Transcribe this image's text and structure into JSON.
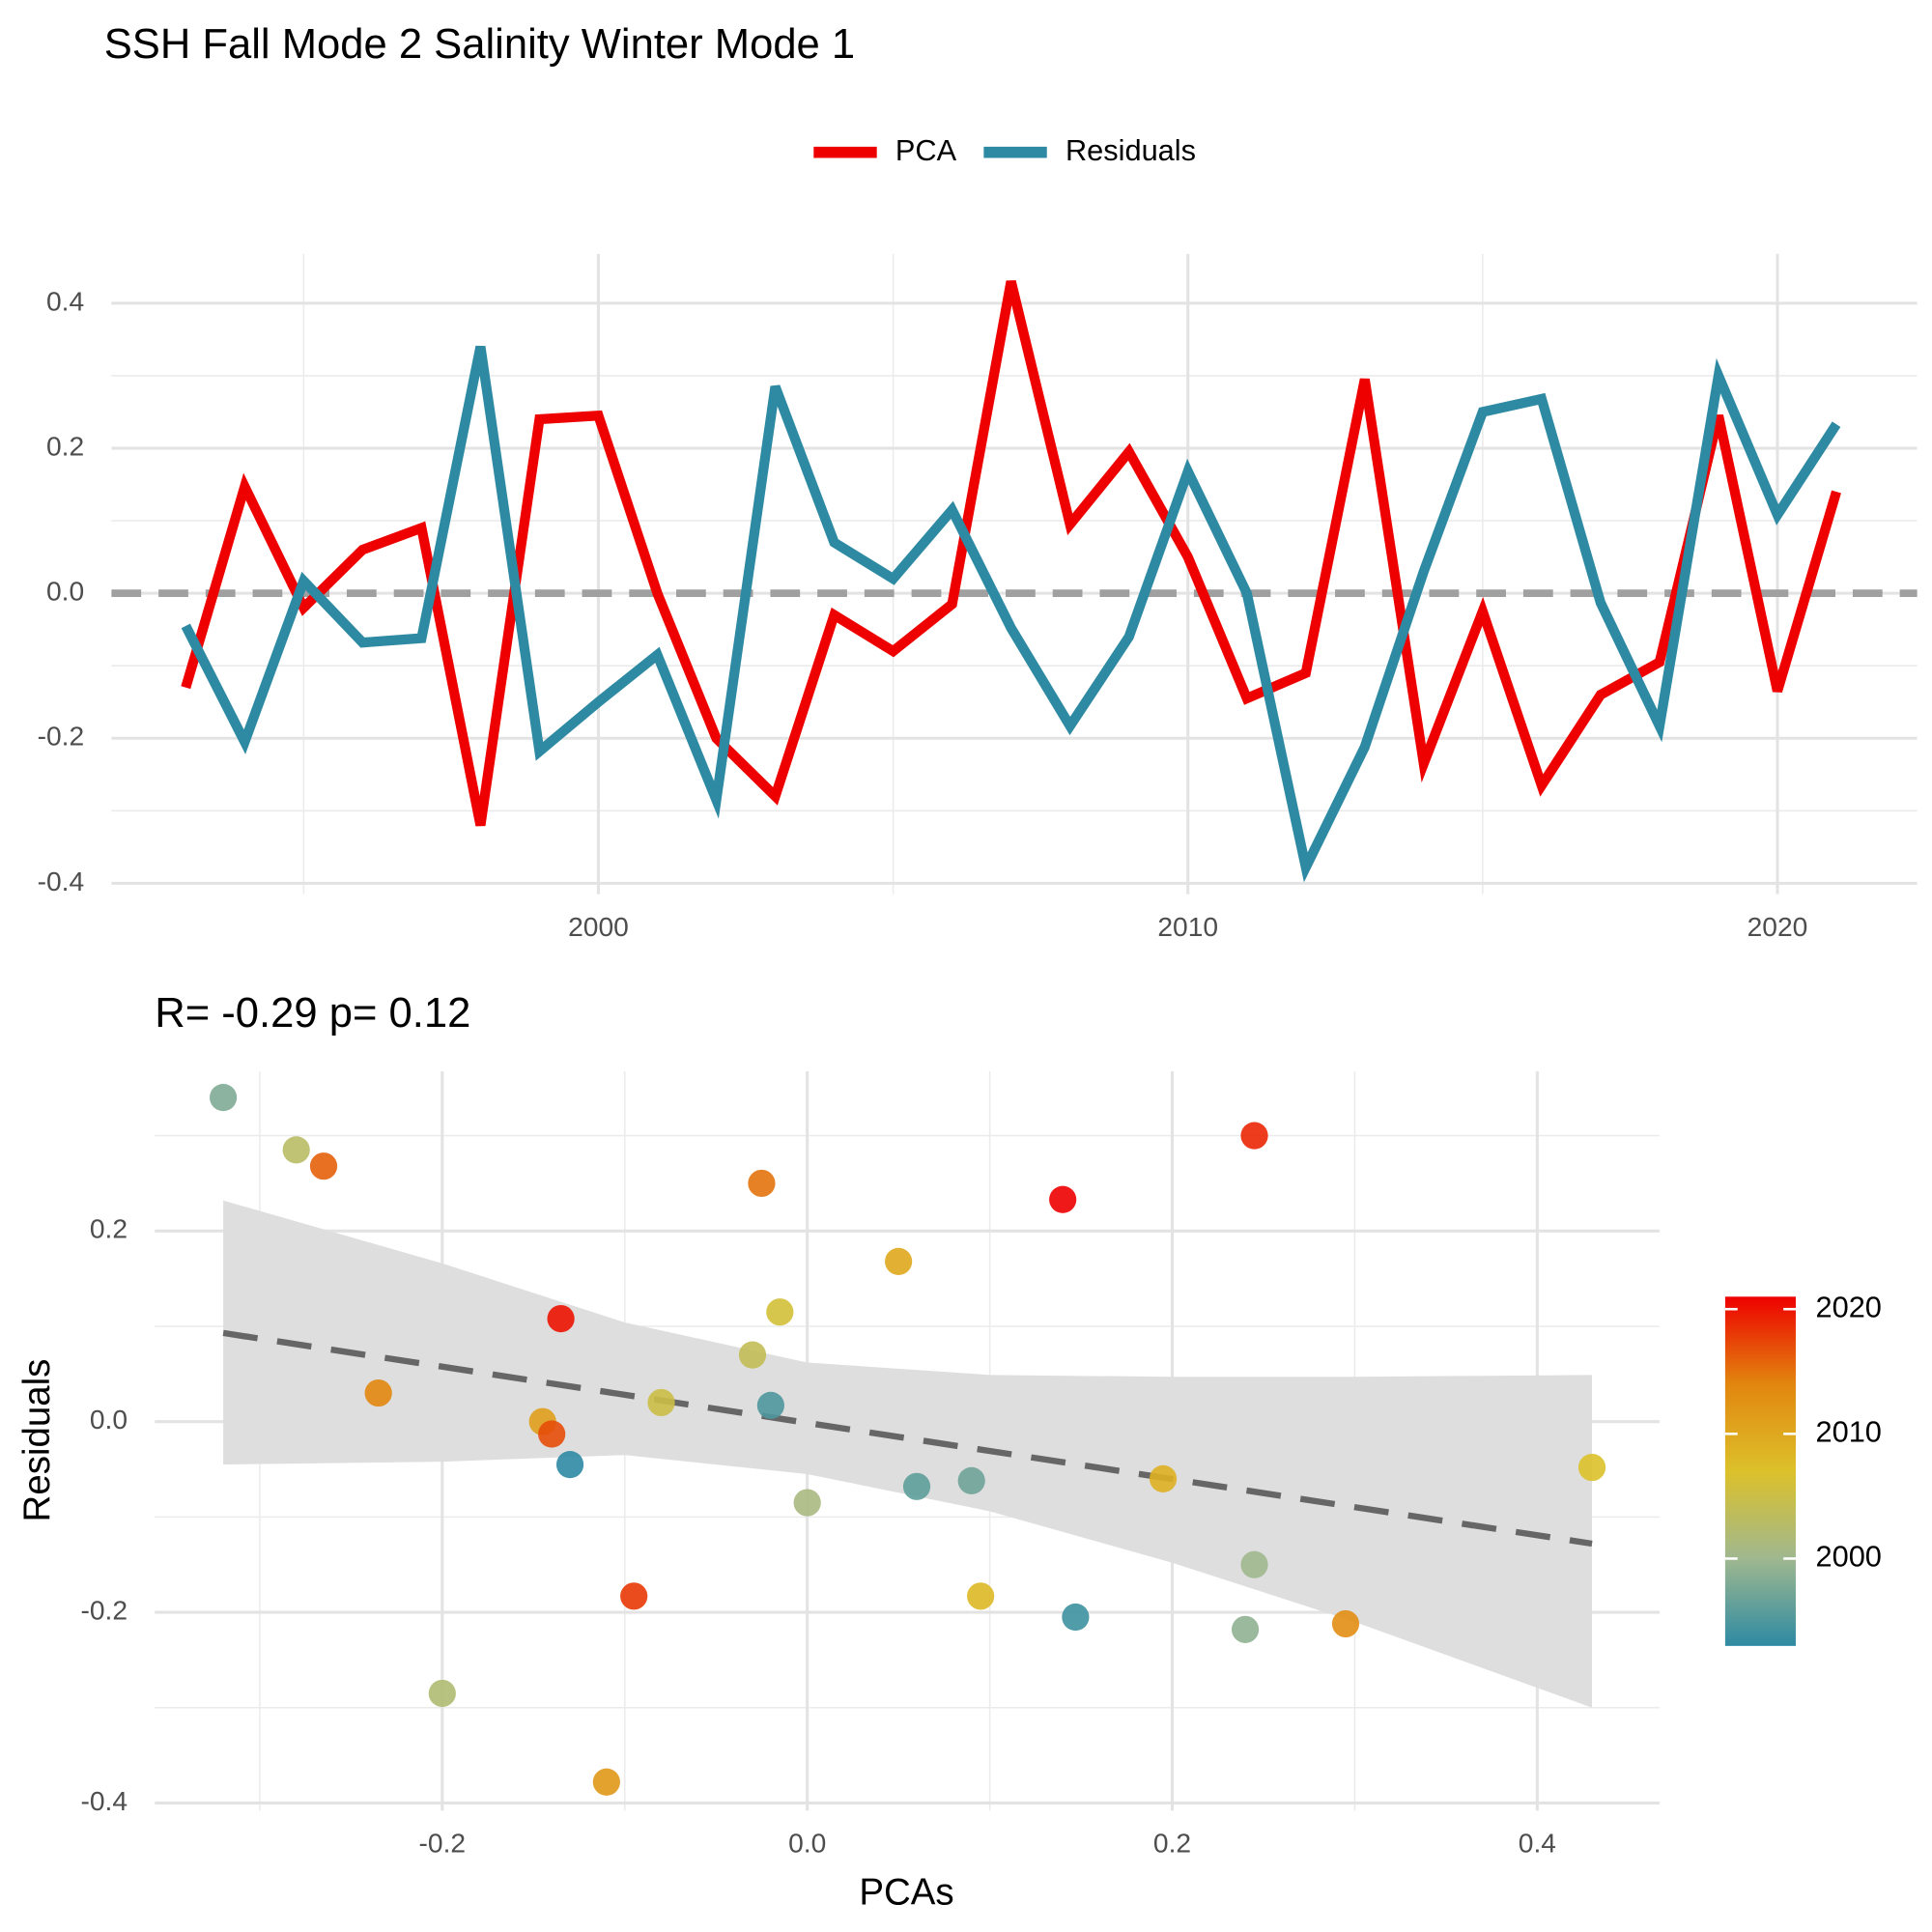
{
  "chart_data": [
    {
      "type": "line",
      "title": "SSH Fall Mode 2 Salinity Winter Mode 1",
      "x": [
        1993,
        1994,
        1995,
        1996,
        1997,
        1998,
        1999,
        2000,
        2001,
        2002,
        2003,
        2004,
        2005,
        2006,
        2007,
        2008,
        2009,
        2010,
        2011,
        2012,
        2013,
        2014,
        2015,
        2016,
        2017,
        2018,
        2019,
        2020,
        2021
      ],
      "series": [
        {
          "name": "PCA",
          "color": "#ee0000",
          "values": [
            -0.13,
            0.147,
            -0.02,
            0.06,
            0.09,
            -0.32,
            0.24,
            0.245,
            0.0,
            -0.2,
            -0.28,
            -0.03,
            -0.08,
            -0.015,
            0.43,
            0.095,
            0.195,
            0.05,
            -0.145,
            -0.11,
            0.295,
            -0.235,
            -0.025,
            -0.265,
            -0.14,
            -0.095,
            0.245,
            -0.135,
            0.14
          ]
        },
        {
          "name": "Residuals",
          "color": "#2e8aa3",
          "values": [
            -0.045,
            -0.205,
            0.017,
            -0.068,
            -0.062,
            0.34,
            -0.218,
            -0.15,
            -0.085,
            -0.285,
            0.285,
            0.07,
            0.02,
            0.115,
            -0.048,
            -0.183,
            -0.06,
            0.168,
            0.0,
            -0.378,
            -0.212,
            0.03,
            0.25,
            0.268,
            -0.013,
            -0.183,
            0.3,
            0.108,
            0.233
          ]
        }
      ],
      "xlim": [
        1991.74,
        2022.37
      ],
      "xticks": [
        2000,
        2010,
        2020
      ],
      "ylim": [
        -0.415,
        0.468
      ],
      "yticks": [
        0.4,
        0.2,
        {
          "value": 0,
          "label": "0.0"
        },
        -0.2,
        -0.4
      ],
      "hline": 0,
      "grid": true,
      "minor_grid": true,
      "legend": "top"
    },
    {
      "type": "scatter",
      "title": "R= -0.29  p= 0.12",
      "x_label": "PCAs",
      "y_label": "Residuals",
      "series": [
        {
          "x": [
            -0.13,
            0.147,
            -0.02,
            0.06,
            0.09,
            -0.32,
            0.24,
            0.245,
            0.0,
            -0.2,
            -0.28,
            -0.03,
            -0.08,
            -0.015,
            0.43,
            0.095,
            0.195,
            0.05,
            -0.145,
            -0.11,
            0.295,
            -0.235,
            -0.025,
            -0.265,
            -0.14,
            -0.095,
            0.245,
            -0.135,
            0.14
          ],
          "values": [
            -0.045,
            -0.205,
            0.017,
            -0.068,
            -0.062,
            0.34,
            -0.218,
            -0.15,
            -0.085,
            -0.285,
            0.285,
            0.07,
            0.02,
            0.115,
            -0.048,
            -0.183,
            -0.06,
            0.168,
            0.0,
            -0.378,
            -0.212,
            0.03,
            0.25,
            0.268,
            -0.013,
            -0.183,
            0.3,
            0.108,
            0.233
          ],
          "color_values": [
            1993,
            1994,
            1995,
            1996,
            1997,
            1998,
            1999,
            2000,
            2001,
            2002,
            2003,
            2004,
            2005,
            2006,
            2007,
            2008,
            2009,
            2010,
            2011,
            2012,
            2013,
            2014,
            2015,
            2016,
            2017,
            2018,
            2019,
            2020,
            2021
          ]
        }
      ],
      "fit": {
        "x": [
          -0.32,
          0.43
        ],
        "y": [
          0.093,
          -0.128
        ],
        "color": "#666666"
      },
      "band": {
        "x": [
          -0.32,
          -0.2,
          -0.1,
          0,
          0.1,
          0.2,
          0.3,
          0.43
        ],
        "upper": [
          0.232,
          0.166,
          0.104,
          0.062,
          0.049,
          0.047,
          0.047,
          0.049
        ],
        "lower": [
          -0.045,
          -0.042,
          -0.035,
          -0.055,
          -0.094,
          -0.148,
          -0.21,
          -0.3
        ],
        "color": "#dedede"
      },
      "xlim": [
        -0.3575,
        0.467
      ],
      "xticks": [
        -0.2,
        {
          "value": 0,
          "label": "0.0"
        },
        0.2,
        0.4
      ],
      "ylim": [
        -0.408,
        0.3675
      ],
      "yticks": [
        0.2,
        {
          "value": 0,
          "label": "0.0"
        },
        -0.2,
        -0.4
      ],
      "grid": true,
      "minor_grid": true,
      "colorscale": [
        "#2e8aa3",
        "#9fb88f",
        "#dcc12a",
        "#e2860f",
        "#ee0000"
      ],
      "clim": [
        1993,
        2021
      ],
      "colorbar_ticks": [
        2000,
        2010,
        2020
      ]
    }
  ]
}
